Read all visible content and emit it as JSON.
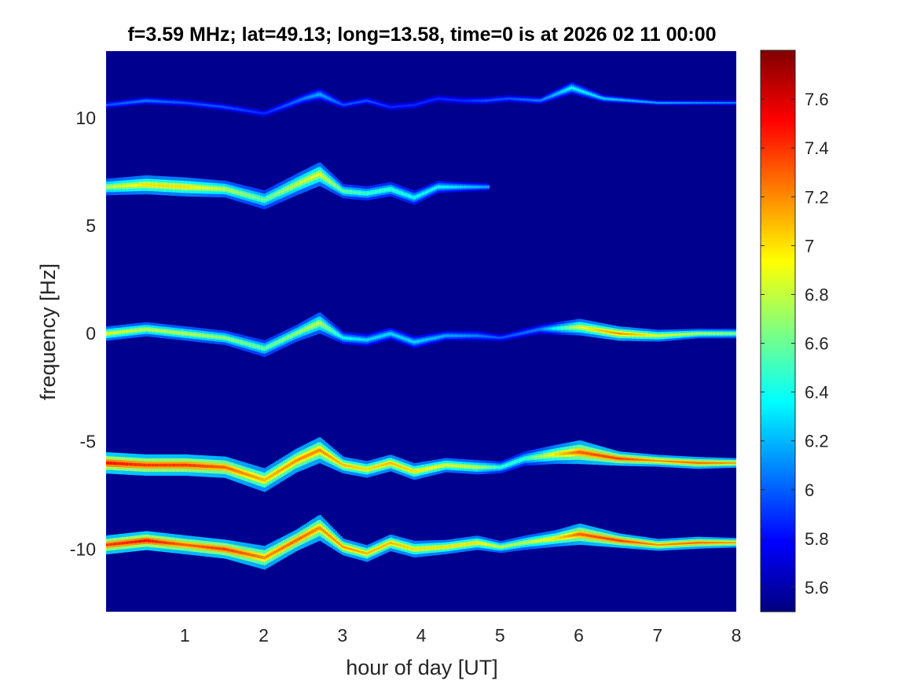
{
  "chart_data": {
    "type": "heatmap",
    "title": "f=3.59 MHz;  lat=49.13; long=13.58, time=0 is at 2026 02 11 00:00",
    "xlabel": "hour of day [UT]",
    "ylabel": "frequency [Hz]",
    "xlim": [
      0,
      8
    ],
    "ylim": [
      -12.9,
      13.1
    ],
    "xticks": [
      "1",
      "2",
      "3",
      "4",
      "5",
      "6",
      "7",
      "8"
    ],
    "xtick_values": [
      1,
      2,
      3,
      4,
      5,
      6,
      7,
      8
    ],
    "yticks": [
      "10",
      "5",
      "0",
      "-5",
      "-10"
    ],
    "ytick_values": [
      10,
      5,
      0,
      -5,
      -10
    ],
    "colormap": "jet",
    "background_color": "#00008f",
    "colorbar": {
      "range": [
        5.5,
        7.8
      ],
      "ticks": [
        "5.6",
        "5.8",
        "6",
        "6.2",
        "6.4",
        "6.6",
        "6.8",
        "7",
        "7.2",
        "7.4",
        "7.6"
      ],
      "tick_values": [
        5.6,
        5.8,
        6.0,
        6.2,
        6.4,
        6.6,
        6.8,
        7.0,
        7.2,
        7.4,
        7.6
      ]
    },
    "series": [
      {
        "x": [
          0,
          0.5,
          1.0,
          1.5,
          2.0,
          2.5,
          2.7,
          3.0,
          3.3,
          3.6,
          3.9,
          4.2,
          4.5,
          4.8,
          5.1,
          5.5,
          5.9,
          6.3,
          7.0,
          8.0
        ],
        "y": [
          10.6,
          10.8,
          10.7,
          10.5,
          10.2,
          10.9,
          11.1,
          10.6,
          10.8,
          10.5,
          10.6,
          10.9,
          10.8,
          10.8,
          10.9,
          10.8,
          11.4,
          10.9,
          10.7,
          10.7
        ],
        "intensity": [
          6.0,
          6.1,
          6.0,
          6.0,
          5.9,
          6.1,
          6.2,
          6.0,
          6.0,
          5.9,
          5.9,
          5.9,
          5.9,
          6.0,
          6.0,
          6.1,
          6.4,
          6.3,
          6.2,
          6.1
        ],
        "spread": [
          0.15,
          0.15,
          0.15,
          0.15,
          0.15,
          0.2,
          0.25,
          0.15,
          0.15,
          0.15,
          0.15,
          0.15,
          0.15,
          0.15,
          0.15,
          0.15,
          0.25,
          0.15,
          0.1,
          0.1
        ]
      },
      {
        "x": [
          0,
          0.5,
          1.0,
          1.5,
          2.0,
          2.4,
          2.7,
          3.0,
          3.3,
          3.6,
          3.9,
          4.2,
          4.5,
          4.85
        ],
        "y": [
          6.8,
          6.9,
          6.8,
          6.7,
          6.2,
          6.9,
          7.4,
          6.6,
          6.5,
          6.7,
          6.3,
          6.8,
          6.8,
          6.8
        ],
        "intensity": [
          6.8,
          7.0,
          7.0,
          6.8,
          6.6,
          6.8,
          6.9,
          6.6,
          6.5,
          6.5,
          6.4,
          6.4,
          6.3,
          6.2
        ],
        "spread": [
          0.35,
          0.4,
          0.4,
          0.35,
          0.4,
          0.45,
          0.5,
          0.3,
          0.3,
          0.3,
          0.3,
          0.25,
          0.2,
          0.15
        ]
      },
      {
        "x": [
          0,
          0.5,
          1.0,
          1.5,
          2.0,
          2.4,
          2.7,
          3.0,
          3.3,
          3.6,
          3.9,
          4.3,
          4.7,
          5.0,
          5.5,
          6.0,
          6.5,
          7.0,
          7.5,
          8.0
        ],
        "y": [
          0.0,
          0.2,
          0.0,
          -0.2,
          -0.7,
          0.0,
          0.5,
          -0.2,
          -0.3,
          0.0,
          -0.4,
          -0.1,
          -0.1,
          -0.2,
          0.2,
          0.3,
          0.0,
          -0.1,
          0.0,
          0.0
        ],
        "intensity": [
          6.9,
          6.8,
          6.8,
          6.7,
          6.6,
          6.7,
          6.8,
          6.4,
          6.3,
          6.3,
          6.3,
          6.2,
          6.1,
          6.0,
          6.1,
          6.9,
          7.2,
          6.9,
          6.8,
          6.7
        ],
        "spread": [
          0.3,
          0.3,
          0.3,
          0.3,
          0.35,
          0.35,
          0.45,
          0.25,
          0.25,
          0.25,
          0.25,
          0.2,
          0.2,
          0.15,
          0.2,
          0.35,
          0.3,
          0.25,
          0.2,
          0.2
        ]
      },
      {
        "x": [
          0,
          0.5,
          1.0,
          1.5,
          2.0,
          2.4,
          2.7,
          3.0,
          3.3,
          3.6,
          3.9,
          4.3,
          4.7,
          5.0,
          5.3,
          5.7,
          6.0,
          6.5,
          7.0,
          7.5,
          8.0
        ],
        "y": [
          -6.0,
          -6.1,
          -6.1,
          -6.2,
          -6.8,
          -5.9,
          -5.4,
          -6.1,
          -6.3,
          -6.0,
          -6.4,
          -6.1,
          -6.2,
          -6.2,
          -5.8,
          -5.6,
          -5.5,
          -5.8,
          -5.9,
          -6.0,
          -6.0
        ],
        "intensity": [
          7.5,
          7.4,
          7.4,
          7.3,
          7.1,
          7.2,
          7.2,
          7.1,
          7.0,
          7.1,
          7.0,
          6.9,
          6.8,
          6.5,
          6.5,
          7.0,
          7.3,
          7.4,
          7.2,
          7.3,
          7.2
        ],
        "spread": [
          0.45,
          0.45,
          0.45,
          0.45,
          0.5,
          0.5,
          0.55,
          0.35,
          0.35,
          0.35,
          0.35,
          0.3,
          0.3,
          0.25,
          0.3,
          0.4,
          0.5,
          0.3,
          0.25,
          0.25,
          0.2
        ]
      },
      {
        "x": [
          0,
          0.5,
          1.0,
          1.5,
          2.0,
          2.4,
          2.7,
          3.0,
          3.3,
          3.6,
          3.9,
          4.3,
          4.7,
          5.0,
          5.3,
          5.7,
          6.0,
          6.5,
          7.0,
          7.5,
          8.0
        ],
        "y": [
          -9.8,
          -9.6,
          -9.8,
          -10.0,
          -10.4,
          -9.6,
          -9.0,
          -9.9,
          -10.2,
          -9.7,
          -10.0,
          -9.9,
          -9.7,
          -9.9,
          -9.7,
          -9.5,
          -9.3,
          -9.6,
          -9.8,
          -9.7,
          -9.7
        ],
        "intensity": [
          7.4,
          7.5,
          7.3,
          7.4,
          7.2,
          7.3,
          7.2,
          7.2,
          7.1,
          7.1,
          7.0,
          7.0,
          7.0,
          6.8,
          6.8,
          7.0,
          7.3,
          7.4,
          7.2,
          7.3,
          7.2
        ],
        "spread": [
          0.4,
          0.4,
          0.4,
          0.4,
          0.5,
          0.45,
          0.55,
          0.35,
          0.35,
          0.35,
          0.35,
          0.3,
          0.3,
          0.25,
          0.3,
          0.35,
          0.45,
          0.3,
          0.25,
          0.25,
          0.2
        ]
      }
    ]
  }
}
